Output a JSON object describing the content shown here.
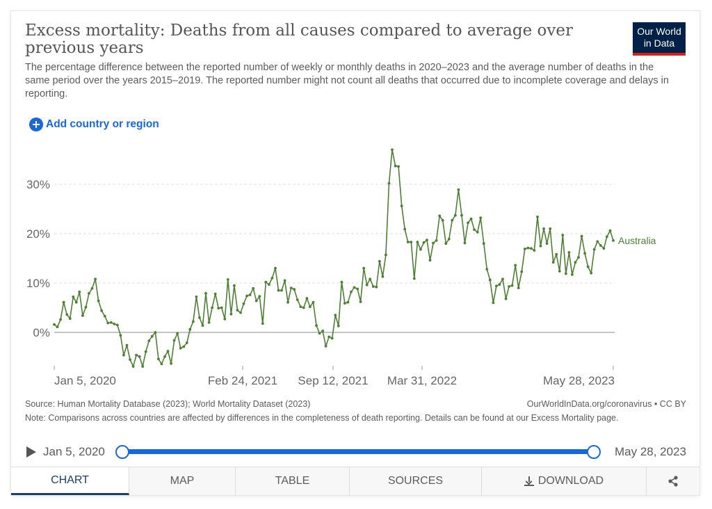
{
  "header": {
    "title": "Excess mortality: Deaths from all causes compared to average over previous years",
    "subtitle": "The percentage difference between the reported number of weekly or monthly deaths in 2020–2023 and the average number of deaths in the same period over the years 2015–2019. The reported number might not count all deaths that occurred due to incomplete coverage and delays in reporting.",
    "logo_line1": "Our World",
    "logo_line2": "in Data"
  },
  "controls": {
    "add_label": "Add country or region"
  },
  "chart_data": {
    "type": "line",
    "x_tick_labels": [
      "Jan 5, 2020",
      "Feb 24, 2021",
      "Sep 12, 2021",
      "Mar 31, 2022",
      "May 28, 2023"
    ],
    "y_tick_labels": [
      "0%",
      "10%",
      "20%",
      "30%"
    ],
    "y_ticks": [
      0,
      10,
      20,
      30
    ],
    "ylim": [
      -7,
      37
    ],
    "grid": "horizontal dashed",
    "series": [
      {
        "name": "Australia",
        "color": "#4e7f35",
        "values": [
          1.6,
          1.1,
          2.6,
          6.1,
          3.6,
          2.8,
          7.2,
          6.1,
          8.2,
          3.4,
          5.1,
          7.9,
          8.9,
          10.8,
          6.4,
          4.4,
          3.3,
          1.9,
          2.0,
          1.7,
          1.5,
          -0.6,
          -4.6,
          -2.6,
          -5.5,
          -6.9,
          -4.6,
          -4.9,
          -6.9,
          -3.9,
          -1.7,
          -0.8,
          0.0,
          -5.4,
          -6.4,
          -4.9,
          -3.8,
          -6.3,
          -1.6,
          -0.2,
          -3.2,
          -2.9,
          -2.1,
          0.6,
          2.2,
          7.2,
          3.0,
          1.4,
          7.9,
          2.0,
          5.0,
          7.8,
          4.9,
          5.0,
          2.7,
          10.7,
          3.7,
          9.5,
          4.5,
          4.0,
          5.8,
          7.4,
          7.6,
          8.9,
          6.4,
          7.3,
          1.8,
          10.2,
          9.7,
          11.0,
          13.0,
          8.5,
          8.5,
          10.5,
          6.1,
          9.0,
          8.7,
          6.6,
          5.2,
          5.0,
          6.9,
          5.2,
          6.1,
          1.4,
          -0.2,
          0.3,
          -2.8,
          -0.9,
          -1.2,
          3.5,
          1.3,
          10.2,
          5.9,
          6.1,
          8.2,
          9.1,
          8.8,
          6.2,
          13.0,
          9.6,
          10.8,
          9.3,
          9.2,
          14.4,
          11.3,
          15.7,
          30.2,
          37.0,
          33.7,
          33.6,
          25.6,
          20.9,
          18.3,
          18.3,
          10.9,
          18.3,
          16.8,
          18.2,
          18.7,
          14.6,
          18.1,
          18.6,
          23.6,
          22.7,
          18.0,
          18.9,
          22.7,
          23.7,
          28.9,
          23.7,
          18.1,
          22.2,
          23.0,
          20.8,
          20.3,
          23.2,
          18.0,
          12.8,
          10.6,
          6.0,
          9.4,
          9.7,
          10.8,
          6.8,
          9.3,
          9.5,
          13.6,
          9.0,
          12.3,
          16.9,
          17.1,
          17.0,
          16.6,
          23.4,
          17.5,
          21.0,
          18.0,
          21.0,
          14.2,
          15.8,
          12.4,
          19.7,
          11.9,
          16.2,
          11.7,
          14.2,
          15.2,
          19.5,
          16.0,
          13.3,
          12.0,
          16.8,
          18.4,
          17.6,
          17.0,
          19.4,
          20.6,
          18.6
        ]
      }
    ]
  },
  "footer": {
    "source": "Source: Human Mortality Database (2023); World Mortality Dataset (2023)",
    "source_url": "OurWorldInData.org/coronavirus • CC BY",
    "note": "Note: Comparisons across countries are affected by differences in the completeness of death reporting. Details can be found at our Excess Mortality page."
  },
  "timeline": {
    "start": "Jan 5, 2020",
    "end": "May 28, 2023"
  },
  "tabs": [
    {
      "label": "CHART"
    },
    {
      "label": "MAP"
    },
    {
      "label": "TABLE"
    },
    {
      "label": "SOURCES"
    },
    {
      "label": "DOWNLOAD"
    }
  ],
  "icons": {
    "share": "share-icon",
    "download": "download-icon",
    "play": "play-icon",
    "add": "plus-circle-icon"
  },
  "colors": {
    "accent": "#1a68d6",
    "brand_navy": "#002147",
    "brand_red": "#ce261e",
    "series": "#4e7f35"
  }
}
